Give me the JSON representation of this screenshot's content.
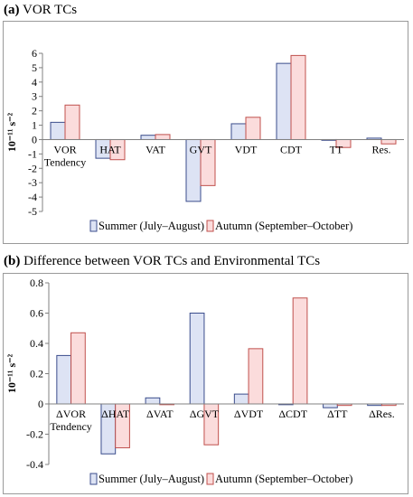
{
  "panels": [
    {
      "title_bold": "(a)",
      "title_rest": "VOR TCs",
      "ylabel": "10⁻¹¹ s⁻²",
      "chart_data": {
        "type": "bar",
        "categories": [
          "VOR Tendency",
          "HAT",
          "VAT",
          "GVT",
          "VDT",
          "CDT",
          "TT",
          "Res."
        ],
        "category_lines": [
          [
            "VOR",
            "Tendency"
          ],
          [
            "HAT"
          ],
          [
            "VAT"
          ],
          [
            "GVT"
          ],
          [
            "VDT"
          ],
          [
            "CDT"
          ],
          [
            "TT"
          ],
          [
            "Res."
          ]
        ],
        "series": [
          {
            "name": "Summer (July–August)",
            "values": [
              1.2,
              -1.3,
              0.3,
              -4.3,
              1.1,
              5.3,
              -0.05,
              0.1
            ]
          },
          {
            "name": "Autumn (September–October)",
            "values": [
              2.4,
              -1.4,
              0.35,
              -3.2,
              1.55,
              5.85,
              -0.55,
              -0.3
            ]
          }
        ],
        "ylim": [
          -5,
          6
        ],
        "yticks": [
          -5,
          -4,
          -3,
          -2,
          -1,
          0,
          1,
          2,
          3,
          4,
          5,
          6
        ],
        "yticklabels": [
          "-5",
          "-4",
          "-3",
          "-2",
          "-1",
          "0",
          "1",
          "2",
          "3",
          "4",
          "5",
          "6"
        ],
        "legend_position": "bottom",
        "grid": false
      }
    },
    {
      "title_bold": "(b)",
      "title_rest": "Difference between VOR TCs and Environmental TCs",
      "ylabel": "10⁻¹¹ s⁻²",
      "chart_data": {
        "type": "bar",
        "categories": [
          "ΔVOR Tendency",
          "ΔHAT",
          "ΔVAT",
          "ΔGVT",
          "ΔVDT",
          "ΔCDT",
          "ΔTT",
          "ΔRes."
        ],
        "category_lines": [
          [
            "ΔVOR",
            "Tendency"
          ],
          [
            "ΔHAT"
          ],
          [
            "ΔVAT"
          ],
          [
            "ΔGVT"
          ],
          [
            "ΔVDT"
          ],
          [
            "ΔCDT"
          ],
          [
            "ΔTT"
          ],
          [
            "ΔRes."
          ]
        ],
        "series": [
          {
            "name": "Summer (July–August)",
            "values": [
              0.32,
              -0.33,
              0.04,
              0.6,
              0.065,
              -0.005,
              -0.025,
              -0.01
            ]
          },
          {
            "name": "Autumn (September–October)",
            "values": [
              0.47,
              -0.29,
              -0.005,
              -0.27,
              0.365,
              0.7,
              -0.01,
              -0.01
            ]
          }
        ],
        "ylim": [
          -0.4,
          0.8
        ],
        "yticks": [
          -0.4,
          -0.2,
          0,
          0.2,
          0.4,
          0.6,
          0.8
        ],
        "yticklabels": [
          "-0.4",
          "-0.2",
          "0",
          "0.2",
          "0.4",
          "0.6",
          "0.8"
        ],
        "legend_position": "bottom",
        "grid": false
      }
    }
  ],
  "colors": {
    "summer_fill": "#dde3f4",
    "summer_edge": "#3b4d8c",
    "autumn_fill": "#fbdcdc",
    "autumn_edge": "#c0504d",
    "axis": "#808080"
  }
}
